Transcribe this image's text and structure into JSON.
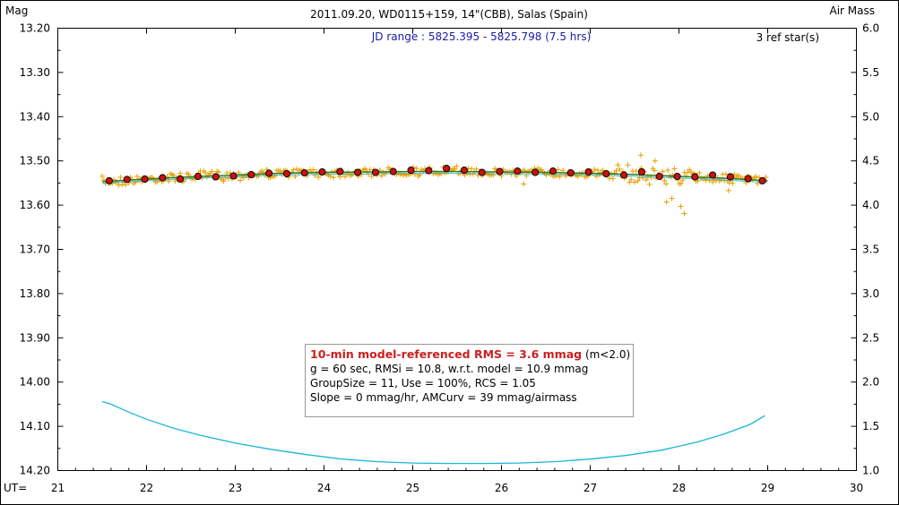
{
  "title": "2011.09.20, WD0115+159, 14\"(CBB), Salas (Spain)",
  "left_axis_label": "Mag",
  "right_axis_label": "Air Mass",
  "x_axis_prefix": "UT=",
  "jd_range": "JD range : 5825.395 - 5825.798 (7.5 hrs)",
  "ref_stars": "3 ref star(s)",
  "stats_box": {
    "line1_highlight": "10-min model-referenced RMS = 3.6 mmag",
    "line1_suffix": " (m<2.0)",
    "line2": "g = 60 sec, RMSi = 10.8, w.r.t. model = 10.9 mmag",
    "line3": "GroupSize = 11, Use = 100%, RCS = 1.05",
    "line4": "Slope = 0 mmag/hr, AMCurv = 39 mmag/airmass"
  },
  "colors": {
    "raw": "#e6a000",
    "binned_fill": "#cc1111",
    "model": "#2a7a2a",
    "airmass": "#19b6d8",
    "jd_text": "#1a1aa6",
    "rms_text": "#cc1f1f"
  },
  "chart_data": {
    "type": "scatter",
    "xlim": [
      21,
      30
    ],
    "ylim_mag": [
      14.2,
      13.2
    ],
    "ylim_airmass": [
      1.0,
      6.0
    ],
    "x_ticks": [
      "21",
      "22",
      "23",
      "24",
      "25",
      "26",
      "27",
      "28",
      "29",
      "30"
    ],
    "y_ticks_mag": [
      "13.20",
      "13.30",
      "13.40",
      "13.50",
      "13.60",
      "13.70",
      "13.80",
      "13.90",
      "14.00",
      "14.10",
      "14.20"
    ],
    "y_ticks_airmass": [
      "6.0",
      "5.5",
      "5.0",
      "4.5",
      "4.0",
      "3.5",
      "3.0",
      "2.5",
      "2.0",
      "1.5",
      "1.0"
    ],
    "series": [
      {
        "kind": "binned",
        "x": [
          21.58,
          21.78,
          21.98,
          22.18,
          22.38,
          22.58,
          22.78,
          22.98,
          23.18,
          23.38,
          23.58,
          23.78,
          23.98,
          24.18,
          24.38,
          24.58,
          24.78,
          24.98,
          25.18,
          25.38,
          25.58,
          25.78,
          25.98,
          26.18,
          26.38,
          26.58,
          26.78,
          26.98,
          27.18,
          27.38,
          27.58,
          27.78,
          27.98,
          28.18,
          28.38,
          28.58,
          28.78,
          28.94
        ],
        "y": [
          13.545,
          13.542,
          13.541,
          13.538,
          13.541,
          13.535,
          13.536,
          13.534,
          13.531,
          13.528,
          13.529,
          13.527,
          13.525,
          13.524,
          13.526,
          13.526,
          13.524,
          13.521,
          13.522,
          13.517,
          13.521,
          13.526,
          13.524,
          13.523,
          13.526,
          13.523,
          13.527,
          13.525,
          13.529,
          13.532,
          13.525,
          13.535,
          13.535,
          13.536,
          13.532,
          13.536,
          13.54,
          13.545
        ]
      },
      {
        "kind": "model",
        "x": [
          21.5,
          22.0,
          22.5,
          23.0,
          23.5,
          24.0,
          24.5,
          25.0,
          25.5,
          26.0,
          26.5,
          27.0,
          27.5,
          28.0,
          28.5,
          29.0
        ],
        "y": [
          13.547,
          13.541,
          13.536,
          13.532,
          13.528,
          13.526,
          13.525,
          13.524,
          13.524,
          13.525,
          13.526,
          13.528,
          13.531,
          13.535,
          13.539,
          13.545
        ]
      },
      {
        "kind": "airmass",
        "x": [
          21.5,
          21.6,
          21.8,
          22.0,
          22.3,
          22.6,
          23.0,
          23.4,
          23.8,
          24.2,
          24.6,
          25.0,
          25.4,
          25.8,
          26.2,
          26.6,
          27.0,
          27.4,
          27.8,
          28.2,
          28.5,
          28.8,
          28.97
        ],
        "y": [
          1.78,
          1.75,
          1.66,
          1.58,
          1.48,
          1.4,
          1.31,
          1.24,
          1.18,
          1.13,
          1.1,
          1.085,
          1.08,
          1.08,
          1.085,
          1.1,
          1.13,
          1.17,
          1.23,
          1.32,
          1.41,
          1.52,
          1.62
        ]
      },
      {
        "kind": "raw",
        "x": [
          27.86,
          27.92,
          28.02,
          28.06,
          27.57,
          27.73,
          26.25,
          28.56
        ],
        "y": [
          13.593,
          13.585,
          13.603,
          13.619,
          13.487,
          13.5,
          13.552,
          13.567
        ]
      }
    ]
  }
}
